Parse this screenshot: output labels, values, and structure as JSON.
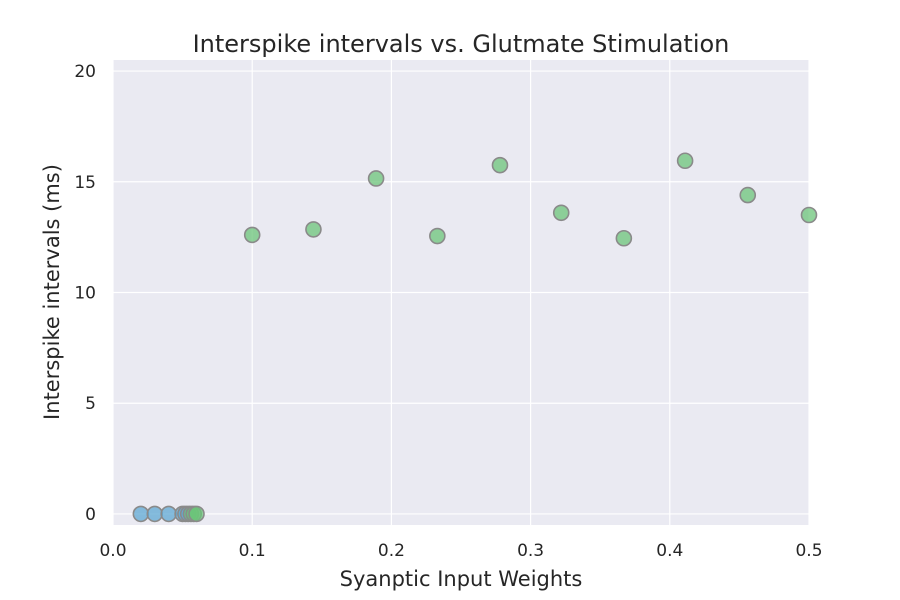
{
  "chart_data": {
    "type": "scatter",
    "title": "Interspike intervals vs. Glutmate Stimulation",
    "xlabel": "Syanptic Input Weights",
    "ylabel": "Interspike intervals (ms)",
    "xlim": [
      0.0,
      0.5
    ],
    "ylim": [
      -0.5,
      20.5
    ],
    "xticks": [
      "0.0",
      "0.1",
      "0.2",
      "0.3",
      "0.4",
      "0.5"
    ],
    "yticks": [
      "0",
      "5",
      "10",
      "15",
      "20"
    ],
    "xtick_values": [
      0.0,
      0.1,
      0.2,
      0.3,
      0.4,
      0.5
    ],
    "ytick_values": [
      0,
      5,
      10,
      15,
      20
    ],
    "grid": true,
    "series": [
      {
        "color": "#5fa8d3",
        "points": [
          {
            "x": 0.02,
            "y": 0
          },
          {
            "x": 0.03,
            "y": 0
          },
          {
            "x": 0.04,
            "y": 0
          },
          {
            "x": 0.05,
            "y": 0
          },
          {
            "x": 0.052,
            "y": 0
          },
          {
            "x": 0.054,
            "y": 0
          }
        ]
      },
      {
        "color": "#6cc47a",
        "points": [
          {
            "x": 0.056,
            "y": 0
          },
          {
            "x": 0.058,
            "y": 0
          },
          {
            "x": 0.06,
            "y": 0
          },
          {
            "x": 0.1,
            "y": 12.6
          },
          {
            "x": 0.144,
            "y": 12.85
          },
          {
            "x": 0.189,
            "y": 15.15
          },
          {
            "x": 0.233,
            "y": 12.55
          },
          {
            "x": 0.278,
            "y": 15.75
          },
          {
            "x": 0.322,
            "y": 13.6
          },
          {
            "x": 0.367,
            "y": 12.45
          },
          {
            "x": 0.411,
            "y": 15.95
          },
          {
            "x": 0.456,
            "y": 14.4
          },
          {
            "x": 0.5,
            "y": 13.5
          }
        ]
      }
    ]
  }
}
